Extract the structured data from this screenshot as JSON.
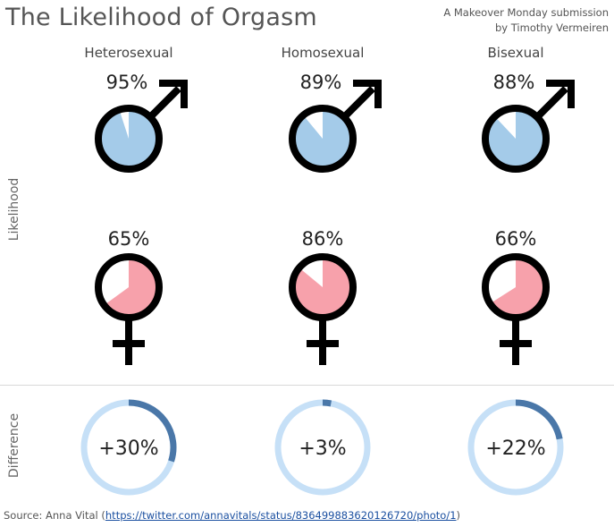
{
  "header": {
    "title": "The Likelihood of Orgasm",
    "subtitle_line1": "A Makeover Monday submission",
    "subtitle_line2": "by Timothy Vermeiren"
  },
  "axes": {
    "likelihood_label": "Likelihood",
    "difference_label": "Difference"
  },
  "footer": {
    "source_prefix": "Source: Anna Vital (",
    "source_link": "https://twitter.com/annavitals/status/836499883620126720/photo/1",
    "source_suffix": ")"
  },
  "colors": {
    "male_fill": "#a4cbe9",
    "female_fill": "#f7a1ab",
    "ring_track": "#c6e0f7",
    "ring_value": "#4a77a8",
    "symbol_stroke": "#000000"
  },
  "chart_data": {
    "type": "pie",
    "categories": [
      "Heterosexual",
      "Homosexual",
      "Bisexual"
    ],
    "series": [
      {
        "name": "male",
        "values": [
          95,
          89,
          88
        ],
        "labels": [
          "95%",
          "89%",
          "88%"
        ]
      },
      {
        "name": "female",
        "values": [
          65,
          86,
          66
        ],
        "labels": [
          "65%",
          "86%",
          "66%"
        ]
      }
    ],
    "difference": {
      "values": [
        30,
        3,
        22
      ],
      "labels": [
        "+30%",
        "+3%",
        "+22%"
      ]
    }
  }
}
